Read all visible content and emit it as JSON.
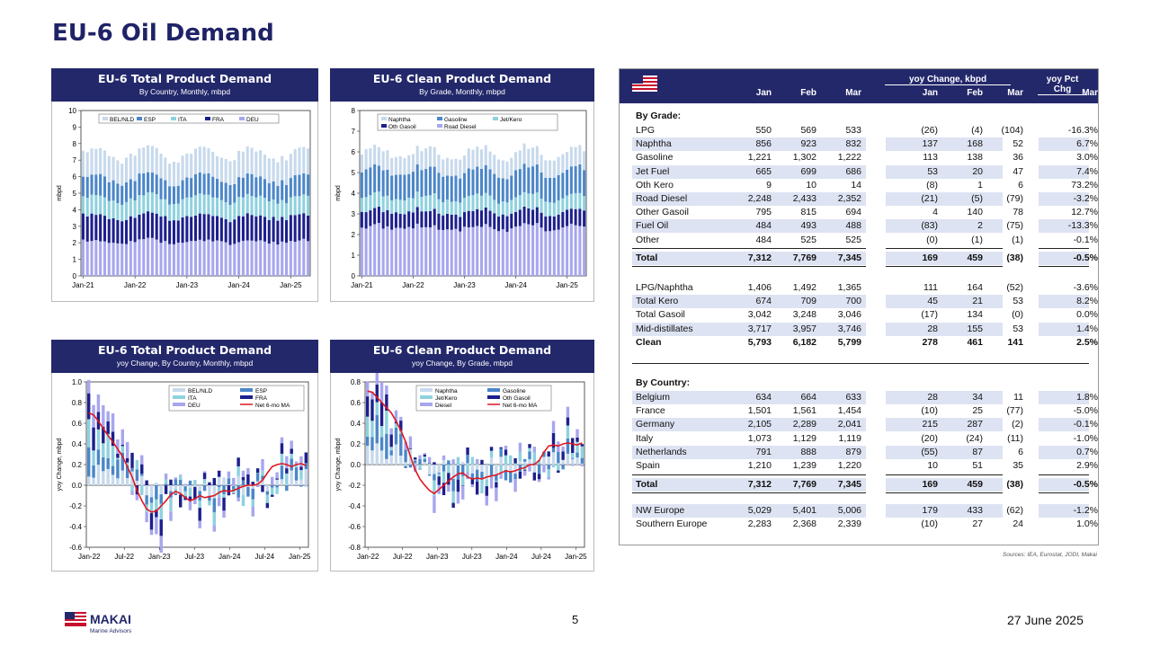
{
  "page": {
    "title": "EU-6 Oil Demand",
    "page_number": "5",
    "date": "27 June 2025",
    "sources": "Sources: IEA, Eurostat, JODI, Makai"
  },
  "logo": {
    "name": "MAKAI",
    "tagline": "Marine Advisors"
  },
  "colors": {
    "navy": "#23286b",
    "DEU": "#a7a6ee",
    "FRA": "#1d1f8c",
    "ITA": "#8fd1df",
    "ESP": "#4b86c8",
    "BEL_NLD": "#c7d9ec",
    "line": "#e0171f"
  },
  "panels": {
    "p1": {
      "title": "EU-6 Total Product Demand",
      "subtitle": "By Country, Monthly, mbpd"
    },
    "p2": {
      "title": "EU-6 Clean Product Demand",
      "subtitle": "By Grade, Monthly, mbpd"
    },
    "p3": {
      "title": "EU-6 Total Product Demand",
      "subtitle": "yoy Change, By Country, Monthly, mbpd"
    },
    "p4": {
      "title": "EU-6 Clean Product Demand",
      "subtitle": "yoy Change, By Grade, mbpd"
    }
  },
  "chart_data": [
    {
      "id": "c1",
      "type": "bar",
      "stacked": true,
      "ylabel": "mbpd",
      "ylim": [
        0,
        10
      ],
      "yticks": [
        0,
        1,
        2,
        3,
        4,
        5,
        6,
        7,
        8,
        9,
        10
      ],
      "xticks": [
        "Jan-21",
        "Jan-22",
        "Jan-23",
        "Jan-24",
        "Jan-25"
      ],
      "grid": false,
      "legend": "top",
      "series": [
        {
          "name": "DEU",
          "color": "#a7a6ee",
          "approx_level": 2.1
        },
        {
          "name": "FRA",
          "color": "#1d1f8c",
          "approx_level": 1.5
        },
        {
          "name": "ITA",
          "color": "#8fd1df",
          "approx_level": 1.1
        },
        {
          "name": "ESP",
          "color": "#4b86c8",
          "approx_level": 1.2
        },
        {
          "name": "BEL/NLD",
          "color": "#c7d9ec",
          "approx_level": 1.5
        }
      ],
      "months": 53,
      "total_range": [
        6.8,
        8.0
      ]
    },
    {
      "id": "c2",
      "type": "bar",
      "stacked": true,
      "ylabel": "mbpd",
      "ylim": [
        0,
        8
      ],
      "yticks": [
        0,
        1,
        2,
        3,
        4,
        5,
        6,
        7,
        8
      ],
      "xticks": [
        "Jan-21",
        "Jan-22",
        "Jan-23",
        "Jan-24",
        "Jan-25"
      ],
      "grid": false,
      "legend": "top",
      "series": [
        {
          "name": "Road Diesel",
          "color": "#a7a6ee",
          "approx_level": 2.35
        },
        {
          "name": "Oth Gasoil",
          "color": "#1d1f8c",
          "approx_level": 0.75
        },
        {
          "name": "Jet/Kero",
          "color": "#8fd1df",
          "approx_level": 0.7
        },
        {
          "name": "Gasoline",
          "color": "#4b86c8",
          "approx_level": 1.25
        },
        {
          "name": "Naphtha",
          "color": "#c7d9ec",
          "approx_level": 0.9
        }
      ],
      "months": 53,
      "total_range": [
        5.4,
        6.3
      ]
    },
    {
      "id": "c3",
      "type": "bar",
      "stacked": true,
      "ylabel": "yoy Change, mbpd",
      "ylim": [
        -0.6,
        1.0
      ],
      "yticks": [
        -0.6,
        -0.4,
        -0.2,
        0.0,
        0.2,
        0.4,
        0.6,
        0.8,
        1.0
      ],
      "xticks": [
        "Jan-22",
        "Jul-22",
        "Jan-23",
        "Jul-23",
        "Jan-24",
        "Jul-24",
        "Jan-25"
      ],
      "legend": "top-right",
      "series_names": [
        "BEL/NLD",
        "ESP",
        "ITA",
        "FRA",
        "DEU",
        "Net 6-mo MA"
      ],
      "ma_line": [
        0.7,
        0.68,
        0.62,
        0.55,
        0.48,
        0.42,
        0.35,
        0.28,
        0.18,
        0.08,
        -0.05,
        -0.15,
        -0.23,
        -0.26,
        -0.25,
        -0.2,
        -0.15,
        -0.09,
        -0.06,
        -0.08,
        -0.12,
        -0.15,
        -0.13,
        -0.1,
        -0.12,
        -0.11,
        -0.1,
        -0.07,
        -0.05,
        -0.06,
        -0.05,
        -0.03,
        -0.01,
        0.0,
        0.0,
        0.01,
        0.05,
        0.12,
        0.18,
        0.2,
        0.21,
        0.2,
        0.18,
        0.2,
        0.21,
        0.19
      ]
    },
    {
      "id": "c4",
      "type": "bar",
      "stacked": true,
      "ylabel": "yoy Change, mbpd",
      "ylim": [
        -0.8,
        0.8
      ],
      "yticks": [
        -0.8,
        -0.6,
        -0.4,
        -0.2,
        0.0,
        0.2,
        0.4,
        0.6,
        0.8
      ],
      "xticks": [
        "Jan-22",
        "Jul-22",
        "Jan-23",
        "Jul-23",
        "Jan-24",
        "Jul-24",
        "Jan-25"
      ],
      "legend": "top-right",
      "series_names": [
        "Naphtha",
        "Gasoline",
        "Jet/Kero",
        "Oth Gasoil",
        "Diesel",
        "Net 6-mo MA"
      ],
      "ma_line": [
        0.71,
        0.7,
        0.65,
        0.6,
        0.55,
        0.5,
        0.42,
        0.33,
        0.22,
        0.08,
        -0.05,
        -0.14,
        -0.2,
        -0.25,
        -0.28,
        -0.24,
        -0.2,
        -0.16,
        -0.12,
        -0.09,
        -0.08,
        -0.12,
        -0.14,
        -0.13,
        -0.14,
        -0.12,
        -0.11,
        -0.1,
        -0.08,
        -0.06,
        -0.07,
        -0.06,
        -0.04,
        -0.03,
        0.0,
        0.0,
        0.04,
        0.12,
        0.18,
        0.19,
        0.18,
        0.2,
        0.21,
        0.2,
        0.19,
        0.21
      ]
    }
  ],
  "table": {
    "group1": "yoy Change, kbpd",
    "group2": "yoy Pct Chg",
    "columns": [
      "Jan",
      "Feb",
      "Mar",
      "Jan",
      "Feb",
      "Mar",
      "Mar"
    ],
    "grade_title": "By Grade:",
    "grade_rows": [
      [
        "LPG",
        "550",
        "569",
        "533",
        "(26)",
        "(4)",
        "(104)",
        "-16.3%"
      ],
      [
        "Naphtha",
        "856",
        "923",
        "832",
        "137",
        "168",
        "52",
        "6.7%"
      ],
      [
        "Gasoline",
        "1,221",
        "1,302",
        "1,222",
        "113",
        "138",
        "36",
        "3.0%"
      ],
      [
        "Jet Fuel",
        "665",
        "699",
        "686",
        "53",
        "20",
        "47",
        "7.4%"
      ],
      [
        "Oth Kero",
        "9",
        "10",
        "14",
        "(8)",
        "1",
        "6",
        "73.2%"
      ],
      [
        "Road Diesel",
        "2,248",
        "2,433",
        "2,352",
        "(21)",
        "(5)",
        "(79)",
        "-3.2%"
      ],
      [
        "Other Gasoil",
        "795",
        "815",
        "694",
        "4",
        "140",
        "78",
        "12.7%"
      ],
      [
        "Fuel Oil",
        "484",
        "493",
        "488",
        "(83)",
        "2",
        "(75)",
        "-13.3%"
      ],
      [
        "Other",
        "484",
        "525",
        "525",
        "(0)",
        "(1)",
        "(1)",
        "-0.1%"
      ]
    ],
    "total1": [
      "Total",
      "7,312",
      "7,769",
      "7,345",
      "169",
      "459",
      "(38)",
      "-0.5%"
    ],
    "sub_rows": [
      [
        "LPG/Naphtha",
        "1,406",
        "1,492",
        "1,365",
        "111",
        "164",
        "(52)",
        "-3.6%"
      ],
      [
        "Total Kero",
        "674",
        "709",
        "700",
        "45",
        "21",
        "53",
        "8.2%"
      ],
      [
        "Total Gasoil",
        "3,042",
        "3,248",
        "3,046",
        "(17)",
        "134",
        "(0)",
        "0.0%"
      ],
      [
        "Mid-distillates",
        "3,717",
        "3,957",
        "3,746",
        "28",
        "155",
        "53",
        "1.4%"
      ],
      [
        "Clean",
        "5,793",
        "6,182",
        "5,799",
        "278",
        "461",
        "141",
        "2.5%"
      ]
    ],
    "country_title": "By Country:",
    "country_rows": [
      [
        "Belgium",
        "634",
        "664",
        "633",
        "28",
        "34",
        "11",
        "1.8%"
      ],
      [
        "France",
        "1,501",
        "1,561",
        "1,454",
        "(10)",
        "25",
        "(77)",
        "-5.0%"
      ],
      [
        "Germany",
        "2,105",
        "2,289",
        "2,041",
        "215",
        "287",
        "(2)",
        "-0.1%"
      ],
      [
        "Italy",
        "1,073",
        "1,129",
        "1,119",
        "(20)",
        "(24)",
        "(11)",
        "-1.0%"
      ],
      [
        "Netherlands",
        "791",
        "888",
        "879",
        "(55)",
        "87",
        "6",
        "0.7%"
      ],
      [
        "Spain",
        "1,210",
        "1,239",
        "1,220",
        "10",
        "51",
        "35",
        "2.9%"
      ]
    ],
    "total2": [
      "Total",
      "7,312",
      "7,769",
      "7,345",
      "169",
      "459",
      "(38)",
      "-0.5%"
    ],
    "region_rows": [
      [
        "NW Europe",
        "5,029",
        "5,401",
        "5,006",
        "179",
        "433",
        "(62)",
        "-1.2%"
      ],
      [
        "Southern Europe",
        "2,283",
        "2,368",
        "2,339",
        "(10)",
        "27",
        "24",
        "1.0%"
      ]
    ]
  }
}
